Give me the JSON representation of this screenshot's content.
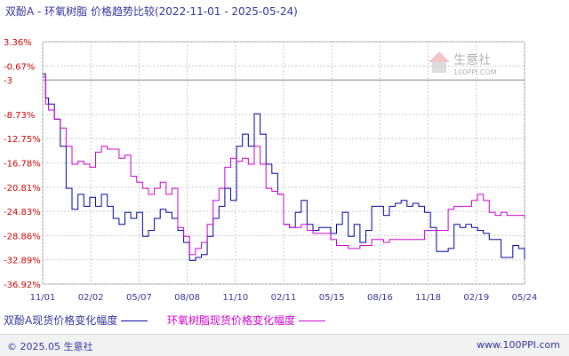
{
  "header": {
    "title": "双酚A - 环氧树脂 价格趋势比较(2022-11-01 - 2025-05-24)"
  },
  "watermark": {
    "brand": "生意社",
    "url": "100PPI.COM"
  },
  "footer": {
    "copyright": "© 2025.05 生意社",
    "site": "www.100PPI.com"
  },
  "colors": {
    "series1": "#000099",
    "series2": "#cc00cc",
    "grid": "#c8c8c8",
    "ytick": "#cc0000",
    "xtick": "#333399"
  },
  "chart_data": {
    "type": "line",
    "title": "双酚A - 环氧树脂 价格趋势比较(2022-11-01 - 2025-05-24)",
    "xlabel": "",
    "ylabel": "",
    "x_ticks": [
      "11/01",
      "02/02",
      "05/07",
      "08/08",
      "11/10",
      "02/11",
      "05/15",
      "08/16",
      "11/18",
      "02/19",
      "05/24"
    ],
    "y_ticks": [
      "3.36%",
      "-0.67%",
      "-3",
      "-8.73%",
      "-12.75%",
      "-16.78%",
      "-20.81%",
      "-24.83%",
      "-28.86%",
      "-32.89%",
      "-36.92%"
    ],
    "y_tick_values": [
      3.36,
      -0.67,
      -3,
      -8.73,
      -12.75,
      -16.78,
      -20.81,
      -24.83,
      -28.86,
      -32.89,
      -36.92
    ],
    "ylim": [
      -36.92,
      3.36
    ],
    "grid": true,
    "reference_line": -3,
    "series": [
      {
        "name": "双酚A现货价格变化幅度",
        "color": "#000099",
        "points": [
          [
            0,
            -2
          ],
          [
            0.5,
            -6
          ],
          [
            1,
            -7
          ],
          [
            2,
            -9.5
          ],
          [
            3,
            -14
          ],
          [
            4,
            -21
          ],
          [
            5,
            -24.5
          ],
          [
            6,
            -22
          ],
          [
            7,
            -24
          ],
          [
            8,
            -22.5
          ],
          [
            9,
            -24
          ],
          [
            10,
            -22
          ],
          [
            11,
            -24
          ],
          [
            12,
            -26
          ],
          [
            13,
            -27
          ],
          [
            14,
            -25
          ],
          [
            15,
            -26
          ],
          [
            16,
            -25
          ],
          [
            17,
            -29
          ],
          [
            18,
            -28
          ],
          [
            19,
            -26
          ],
          [
            20,
            -24.5
          ],
          [
            21,
            -25
          ],
          [
            22,
            -26
          ],
          [
            23,
            -28
          ],
          [
            24,
            -30
          ],
          [
            25,
            -33
          ],
          [
            26,
            -32.5
          ],
          [
            27,
            -32
          ],
          [
            28,
            -29
          ],
          [
            29,
            -26
          ],
          [
            30,
            -24
          ],
          [
            31,
            -21
          ],
          [
            32,
            -23
          ],
          [
            33,
            -14
          ],
          [
            34,
            -12
          ],
          [
            35,
            -14
          ],
          [
            36,
            -8.6
          ],
          [
            37,
            -12
          ],
          [
            38,
            -17
          ],
          [
            39,
            -18.5
          ],
          [
            40,
            -22
          ],
          [
            41,
            -27
          ],
          [
            42,
            -27.5
          ],
          [
            43,
            -25
          ],
          [
            44,
            -23
          ],
          [
            45,
            -27
          ],
          [
            46,
            -28
          ],
          [
            47,
            -27.5
          ],
          [
            48,
            -27.5
          ],
          [
            49,
            -28.5
          ],
          [
            50,
            -27
          ],
          [
            51,
            -25
          ],
          [
            52,
            -29
          ],
          [
            53,
            -27
          ],
          [
            54,
            -30
          ],
          [
            55,
            -28
          ],
          [
            56,
            -24
          ],
          [
            57,
            -24
          ],
          [
            58,
            -25.5
          ],
          [
            59,
            -24
          ],
          [
            60,
            -23.5
          ],
          [
            61,
            -23
          ],
          [
            62,
            -24
          ],
          [
            63,
            -23.5
          ],
          [
            64,
            -24
          ],
          [
            65,
            -25
          ],
          [
            66,
            -27.5
          ],
          [
            67,
            -31.5
          ],
          [
            68,
            -31.5
          ],
          [
            69,
            -31
          ],
          [
            70,
            -27
          ],
          [
            71,
            -27.5
          ],
          [
            72,
            -27
          ],
          [
            73,
            -27.5
          ],
          [
            74,
            -28
          ],
          [
            75,
            -28.5
          ],
          [
            76,
            -29.5
          ],
          [
            77,
            -29.5
          ],
          [
            78,
            -32.5
          ],
          [
            79,
            -32.5
          ],
          [
            80,
            -30.5
          ],
          [
            81,
            -31
          ],
          [
            82,
            -32.8
          ]
        ]
      },
      {
        "name": "环氧树脂现货价格变化幅度",
        "color": "#cc00cc",
        "points": [
          [
            0,
            -2.5
          ],
          [
            0.5,
            -7
          ],
          [
            1,
            -8
          ],
          [
            2,
            -9.5
          ],
          [
            3,
            -11
          ],
          [
            4,
            -14
          ],
          [
            5,
            -17
          ],
          [
            6,
            -16.5
          ],
          [
            7,
            -17
          ],
          [
            8,
            -17.5
          ],
          [
            9,
            -15
          ],
          [
            10,
            -14
          ],
          [
            11,
            -14.5
          ],
          [
            12,
            -14.5
          ],
          [
            13,
            -16
          ],
          [
            14,
            -15.5
          ],
          [
            15,
            -19
          ],
          [
            16,
            -20
          ],
          [
            17,
            -21
          ],
          [
            18,
            -22
          ],
          [
            19,
            -21
          ],
          [
            20,
            -20
          ],
          [
            21,
            -22
          ],
          [
            22,
            -21
          ],
          [
            23,
            -27.5
          ],
          [
            24,
            -29
          ],
          [
            25,
            -32
          ],
          [
            26,
            -31
          ],
          [
            27,
            -30
          ],
          [
            28,
            -27
          ],
          [
            29,
            -23
          ],
          [
            30,
            -21
          ],
          [
            31,
            -17.5
          ],
          [
            32,
            -16
          ],
          [
            33,
            -16.5
          ],
          [
            34,
            -16
          ],
          [
            35,
            -17
          ],
          [
            36,
            -14
          ],
          [
            37,
            -17
          ],
          [
            38,
            -21
          ],
          [
            39,
            -21.5
          ],
          [
            40,
            -22
          ],
          [
            41,
            -27
          ],
          [
            42,
            -27.5
          ],
          [
            43,
            -27.5
          ],
          [
            44,
            -27
          ],
          [
            45,
            -28
          ],
          [
            46,
            -28.5
          ],
          [
            47,
            -28.5
          ],
          [
            48,
            -28.5
          ],
          [
            49,
            -29.5
          ],
          [
            50,
            -30.5
          ],
          [
            51,
            -30.5
          ],
          [
            52,
            -31
          ],
          [
            53,
            -31
          ],
          [
            54,
            -30.5
          ],
          [
            55,
            -30.5
          ],
          [
            56,
            -29.5
          ],
          [
            57,
            -29.5
          ],
          [
            58,
            -30
          ],
          [
            59,
            -29.5
          ],
          [
            60,
            -29.5
          ],
          [
            61,
            -29.5
          ],
          [
            62,
            -29.5
          ],
          [
            63,
            -29.5
          ],
          [
            64,
            -29.5
          ],
          [
            65,
            -28
          ],
          [
            66,
            -28
          ],
          [
            67,
            -28
          ],
          [
            68,
            -28
          ],
          [
            69,
            -24.5
          ],
          [
            70,
            -24
          ],
          [
            71,
            -24
          ],
          [
            72,
            -24
          ],
          [
            73,
            -23
          ],
          [
            74,
            -22
          ],
          [
            75,
            -23
          ],
          [
            76,
            -25
          ],
          [
            77,
            -25.5
          ],
          [
            78,
            -25
          ],
          [
            79,
            -25.5
          ],
          [
            80,
            -25.5
          ],
          [
            81,
            -25.5
          ],
          [
            82,
            -26
          ]
        ]
      }
    ]
  }
}
